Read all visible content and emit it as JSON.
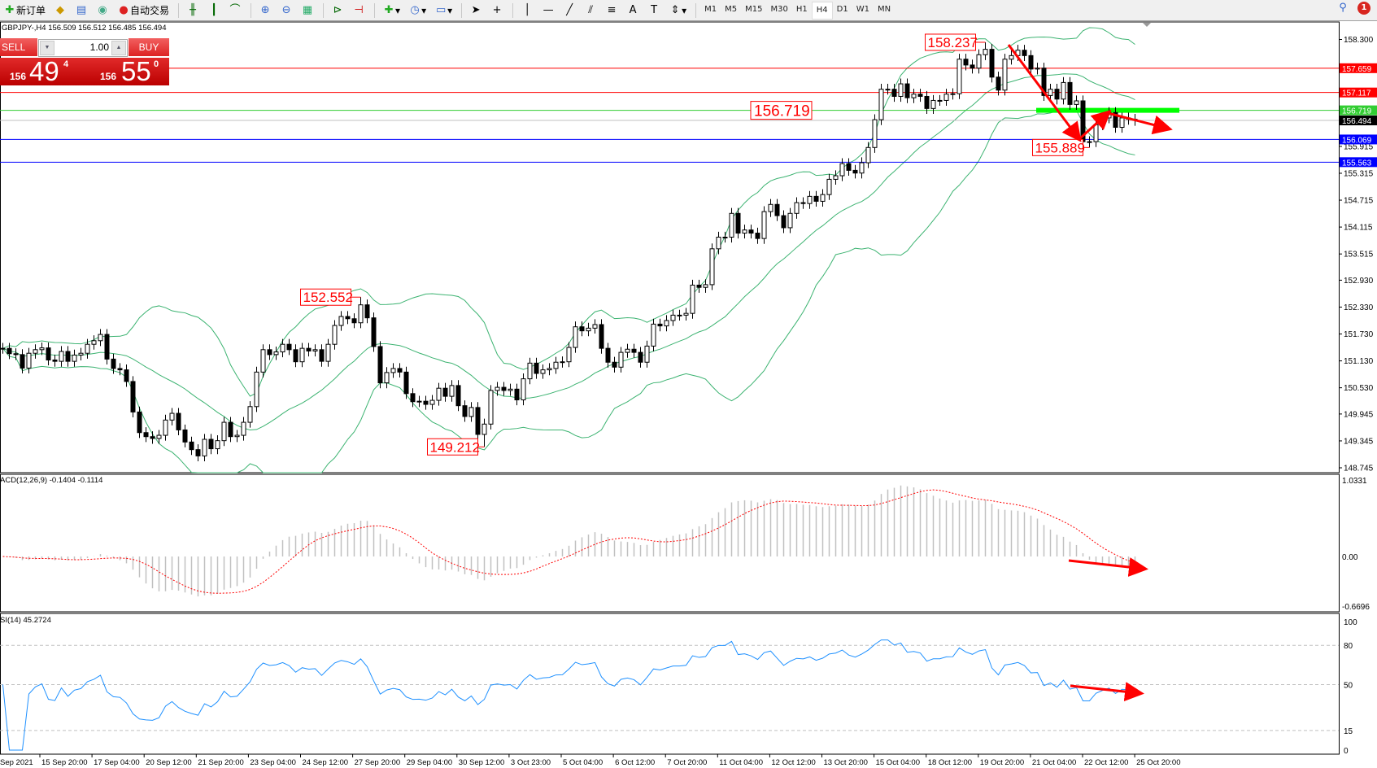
{
  "toolbar": {
    "new_order": "新订单",
    "auto_trade": "自动交易",
    "timeframes": [
      "M1",
      "M5",
      "M15",
      "M30",
      "H1",
      "H4",
      "D1",
      "W1",
      "MN"
    ],
    "active_timeframe": "H4",
    "notification_count": "1"
  },
  "chart": {
    "info": "GBPJPY-,H4  156.509 156.512 156.485 156.494"
  },
  "trade_panel": {
    "sell_label": "SELL",
    "buy_label": "BUY",
    "lots": "1.00",
    "sell_prefix": "156",
    "sell_big": "49",
    "sell_sup": "4",
    "buy_prefix": "156",
    "buy_big": "55",
    "buy_sup": "0"
  },
  "chart_data": {
    "type": "candlestick",
    "symbol": "GBPJPY-",
    "timeframe": "H4",
    "ylim": [
      148.745,
      158.3
    ],
    "closes": [
      151.41,
      151.29,
      151.27,
      150.97,
      151.3,
      151.38,
      151.42,
      151.15,
      151.12,
      151.34,
      151.12,
      151.26,
      151.3,
      151.5,
      151.58,
      151.72,
      151.17,
      150.96,
      150.93,
      150.67,
      149.99,
      149.53,
      149.44,
      149.4,
      149.47,
      149.81,
      149.96,
      149.59,
      149.32,
      149.15,
      149.01,
      149.38,
      149.17,
      149.35,
      149.76,
      149.44,
      149.47,
      149.76,
      150.11,
      150.88,
      151.38,
      151.27,
      151.33,
      151.5,
      151.38,
      151.11,
      151.41,
      151.35,
      151.38,
      151.12,
      151.5,
      151.92,
      152.12,
      152.07,
      151.98,
      152.38,
      152.09,
      151.45,
      150.64,
      150.87,
      150.96,
      150.88,
      150.4,
      150.22,
      150.23,
      150.16,
      150.25,
      150.52,
      150.34,
      150.58,
      150.13,
      149.89,
      150.09,
      149.49,
      149.72,
      150.47,
      150.54,
      150.47,
      150.5,
      150.26,
      150.73,
      151.08,
      150.85,
      150.93,
      150.96,
      151.1,
      151.11,
      151.43,
      151.89,
      151.8,
      151.86,
      151.94,
      151.41,
      151.1,
      150.99,
      151.32,
      151.39,
      151.32,
      151.1,
      151.46,
      151.95,
      151.91,
      152.03,
      152.15,
      152.15,
      152.19,
      152.82,
      152.77,
      152.83,
      153.63,
      153.89,
      153.89,
      154.42,
      153.98,
      154.05,
      153.98,
      153.86,
      154.46,
      154.62,
      154.37,
      154.1,
      154.42,
      154.66,
      154.64,
      154.8,
      154.69,
      154.84,
      155.18,
      155.26,
      155.53,
      155.38,
      155.32,
      155.55,
      155.89,
      156.51,
      157.19,
      157.19,
      157.03,
      157.31,
      157.0,
      157.08,
      157.03,
      156.76,
      156.94,
      156.94,
      157.08,
      157.09,
      157.86,
      157.73,
      157.66,
      157.96,
      158.08,
      157.46,
      157.17,
      157.86,
      157.94,
      158.06,
      157.94,
      157.64,
      157.66,
      157.05,
      157.19,
      156.97,
      157.34,
      156.85,
      156.93,
      156.02,
      156.02,
      156.4,
      156.55,
      156.67,
      156.34,
      156.55,
      156.52,
      156.494
    ],
    "extremes": [
      {
        "index": 55,
        "price": 152.552,
        "label": "152.552",
        "kind": "high"
      },
      {
        "index": 74,
        "price": 149.212,
        "label": "149.212",
        "kind": "low"
      },
      {
        "index": 151,
        "price": 158.237,
        "label": "158.237",
        "kind": "high"
      },
      {
        "index": 167,
        "price": 155.889,
        "label": "155.889",
        "kind": "low"
      }
    ],
    "price_ticks": [
      "158.300",
      "155.915",
      "155.315",
      "154.715",
      "154.115",
      "153.515",
      "152.930",
      "152.330",
      "151.730",
      "151.130",
      "150.530",
      "149.945",
      "149.345",
      "148.745"
    ],
    "hlines": [
      {
        "price": 157.659,
        "label": "157.659",
        "color": "#ff0000"
      },
      {
        "price": 157.117,
        "label": "157.117",
        "color": "#ff0000"
      },
      {
        "price": 156.719,
        "label": "156.719",
        "color": "#32cd32"
      },
      {
        "price": 156.494,
        "label": "156.494",
        "color": "#000000",
        "line": "#c0c0c0"
      },
      {
        "price": 156.069,
        "label": "156.069",
        "color": "#0000ff"
      },
      {
        "price": 155.563,
        "label": "155.563",
        "color": "#0000ff"
      }
    ],
    "text_label": {
      "price": 156.719,
      "text": "156.719"
    },
    "bollinger": {
      "period": 20,
      "deviation": 2,
      "color": "#3cb371"
    },
    "macd": {
      "title": "ACD(12,26,9) -0.1404 -0.1114",
      "ticks": [
        "1.0331",
        "0.00",
        "-0.6696"
      ],
      "ylim": [
        -0.6696,
        1.0331
      ],
      "hist_color": "#c0c0c0",
      "signal_color": "#ff0000"
    },
    "rsi": {
      "title": "SI(14) 45.2724",
      "ticks": [
        "100",
        "80",
        "50",
        "15",
        "0"
      ],
      "levels": [
        80,
        50,
        15
      ],
      "color": "#1e90ff"
    },
    "time_labels": [
      "Sep 2021",
      "15 Sep 20:00",
      "17 Sep 04:00",
      "20 Sep 12:00",
      "21 Sep 20:00",
      "23 Sep 04:00",
      "24 Sep 12:00",
      "27 Sep 20:00",
      "29 Sep 04:00",
      "30 Sep 12:00",
      "3 Oct 23:00",
      "5 Oct 04:00",
      "6 Oct 12:00",
      "7 Oct 20:00",
      "11 Oct 04:00",
      "12 Oct 12:00",
      "13 Oct 20:00",
      "15 Oct 04:00",
      "18 Oct 12:00",
      "19 Oct 20:00",
      "21 Oct 04:00",
      "22 Oct 12:00",
      "25 Oct 20:00"
    ],
    "annotation_color": "#ff0000"
  }
}
